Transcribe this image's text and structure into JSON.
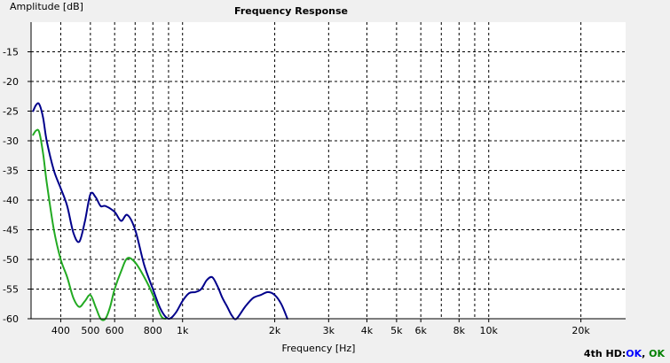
{
  "chart_data": {
    "type": "line",
    "title": "Frequency Response",
    "xlabel": "Frequency [Hz]",
    "ylabel": "Amplitude [dB]",
    "x_scale": "log",
    "xlim": [
      320,
      28000
    ],
    "ylim": [
      -60,
      -10
    ],
    "grid": true,
    "x_ticks": [
      {
        "value": 400,
        "label": "400"
      },
      {
        "value": 500,
        "label": "500"
      },
      {
        "value": 600,
        "label": "600"
      },
      {
        "value": 800,
        "label": "800"
      },
      {
        "value": 1000,
        "label": "1k"
      },
      {
        "value": 2000,
        "label": "2k"
      },
      {
        "value": 3000,
        "label": "3k"
      },
      {
        "value": 4000,
        "label": "4k"
      },
      {
        "value": 5000,
        "label": "5k"
      },
      {
        "value": 6000,
        "label": "6k"
      },
      {
        "value": 8000,
        "label": "8k"
      },
      {
        "value": 10000,
        "label": "10k"
      },
      {
        "value": 20000,
        "label": "20k"
      }
    ],
    "x_grid_extra": [
      700,
      900,
      7000,
      9000
    ],
    "y_ticks": [
      {
        "value": -15,
        "label": "-15"
      },
      {
        "value": -20,
        "label": "-20"
      },
      {
        "value": -25,
        "label": "-25"
      },
      {
        "value": -30,
        "label": "-30"
      },
      {
        "value": -35,
        "label": "-35"
      },
      {
        "value": -40,
        "label": "-40"
      },
      {
        "value": -45,
        "label": "-45"
      },
      {
        "value": -50,
        "label": "-50"
      },
      {
        "value": -55,
        "label": "-55"
      },
      {
        "value": -60,
        "label": "-60"
      }
    ],
    "series": [
      {
        "color": "#00008b",
        "x": [
          325,
          332,
          340,
          350,
          360,
          380,
          400,
          420,
          440,
          460,
          480,
          500,
          520,
          540,
          560,
          600,
          630,
          660,
          700,
          750,
          800,
          850,
          900,
          950,
          1000,
          1050,
          1100,
          1150,
          1200,
          1250,
          1300,
          1350,
          1400,
          1450,
          1500,
          1600,
          1700,
          1800,
          1900,
          2000,
          2100,
          2200
        ],
        "y": [
          -25,
          -24,
          -23.8,
          -26,
          -30,
          -35,
          -38,
          -41,
          -45.5,
          -47,
          -43.5,
          -39,
          -39.5,
          -41,
          -41,
          -42,
          -43.5,
          -42.5,
          -45,
          -51,
          -55,
          -58.5,
          -60,
          -59,
          -57,
          -55.7,
          -55.5,
          -55,
          -53.5,
          -53,
          -54.5,
          -56.5,
          -58,
          -59.5,
          -60,
          -58,
          -56.5,
          -56,
          -55.5,
          -56,
          -57.5,
          -60
        ]
      },
      {
        "color": "#22aa22",
        "x": [
          325,
          332,
          340,
          350,
          360,
          380,
          400,
          420,
          440,
          460,
          480,
          500,
          520,
          540,
          560,
          580,
          600,
          630,
          660,
          700,
          750,
          800,
          850,
          880
        ],
        "y": [
          -29,
          -28.3,
          -28.5,
          -32,
          -37,
          -45,
          -50,
          -53,
          -56.5,
          -58,
          -57,
          -56,
          -58,
          -60,
          -60,
          -58,
          -55,
          -52,
          -49.8,
          -50.5,
          -53,
          -56,
          -59.5,
          -60
        ]
      }
    ]
  },
  "status": {
    "prefix": "4th HD:",
    "part1": "OK",
    "sep": ", ",
    "part2": "OK"
  }
}
